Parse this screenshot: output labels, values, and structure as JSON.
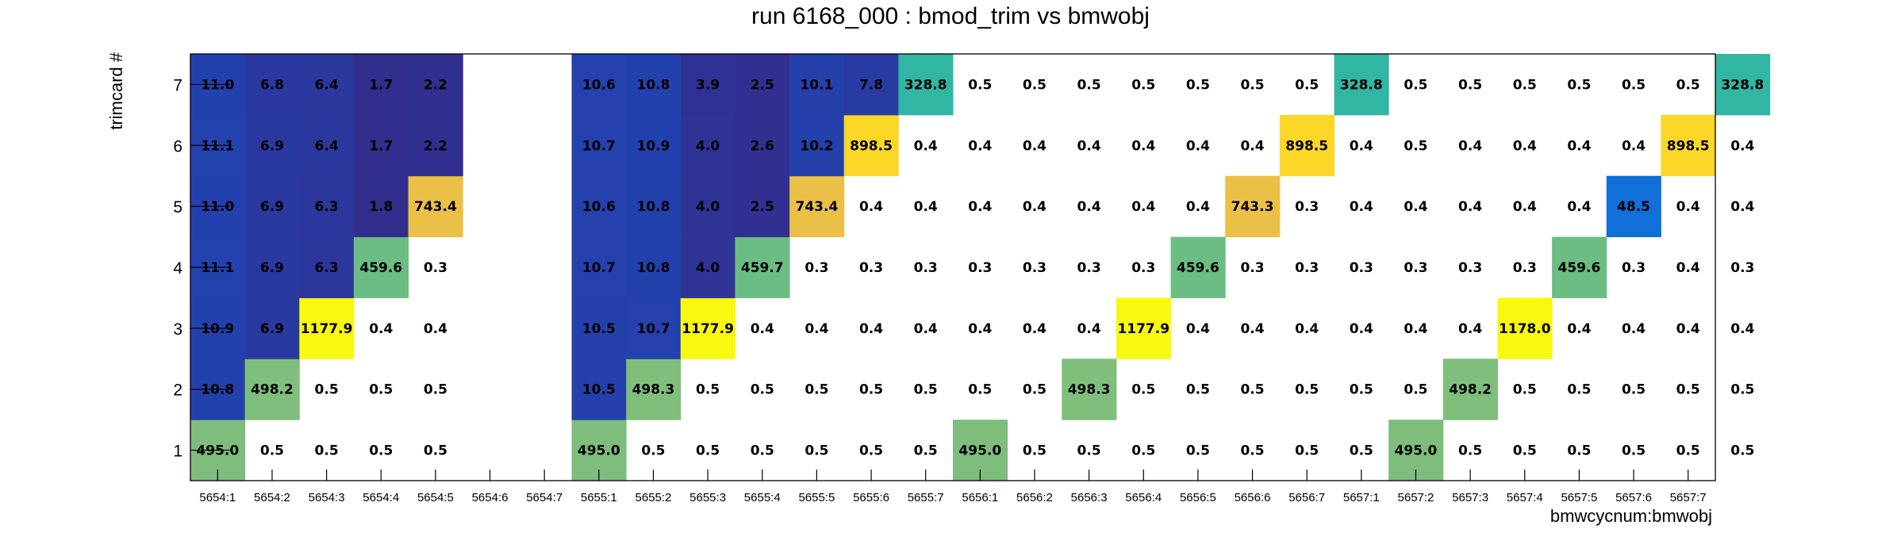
{
  "chart_data": {
    "type": "heatmap",
    "title": "run 6168_000 : bmod_trim vs bmwobj",
    "xlabel": "bmwcycnum:bmwobj",
    "ylabel": "trimcard #",
    "x_categories": [
      "5654:1",
      "5654:2",
      "5654:3",
      "5654:4",
      "5654:5",
      "5654:6",
      "5654:7",
      "5655:1",
      "5655:2",
      "5655:3",
      "5655:4",
      "5655:5",
      "5655:6",
      "5655:7",
      "5656:1",
      "5656:2",
      "5656:3",
      "5656:4",
      "5656:5",
      "5656:6",
      "5656:7",
      "5657:1",
      "5657:2",
      "5657:3",
      "5657:4",
      "5657:5",
      "5657:6",
      "5657:7"
    ],
    "y_categories": [
      "1",
      "2",
      "3",
      "4",
      "5",
      "6",
      "7"
    ],
    "grid": false,
    "legend": "none",
    "colormap": "parula",
    "color_range": [
      0,
      1200
    ],
    "values": [
      [
        495.0,
        10.8,
        10.9,
        11.1,
        11.0,
        11.1,
        11.0
      ],
      [
        0.5,
        498.2,
        6.9,
        6.9,
        6.9,
        6.9,
        6.8
      ],
      [
        0.5,
        0.5,
        1177.9,
        6.3,
        6.3,
        6.4,
        6.4
      ],
      [
        0.5,
        0.5,
        0.4,
        459.6,
        1.8,
        1.7,
        1.7
      ],
      [
        0.5,
        0.5,
        0.4,
        0.3,
        743.4,
        2.2,
        2.2
      ],
      [
        null,
        null,
        null,
        null,
        null,
        null,
        null
      ],
      [
        null,
        null,
        null,
        null,
        null,
        null,
        null
      ],
      [
        495.0,
        10.5,
        10.5,
        10.7,
        10.6,
        10.7,
        10.6
      ],
      [
        0.5,
        498.3,
        10.7,
        10.8,
        10.8,
        10.9,
        10.8
      ],
      [
        0.5,
        0.5,
        1177.9,
        4.0,
        4.0,
        4.0,
        3.9
      ],
      [
        0.5,
        0.5,
        0.4,
        459.7,
        2.5,
        2.6,
        2.5
      ],
      [
        0.5,
        0.5,
        0.4,
        0.3,
        743.4,
        10.2,
        10.1
      ],
      [
        0.5,
        0.5,
        0.4,
        0.3,
        0.4,
        898.5,
        7.8
      ],
      [
        0.5,
        0.5,
        0.4,
        0.3,
        0.4,
        0.4,
        328.8
      ],
      [
        495.0,
        0.5,
        0.4,
        0.3,
        0.4,
        0.4,
        0.5
      ],
      [
        0.5,
        0.5,
        0.4,
        0.3,
        0.4,
        0.4,
        0.5
      ],
      [
        0.5,
        498.3,
        0.4,
        0.3,
        0.4,
        0.4,
        0.5
      ],
      [
        0.5,
        0.5,
        1177.9,
        0.3,
        0.4,
        0.4,
        0.5
      ],
      [
        0.5,
        0.5,
        0.4,
        459.6,
        0.4,
        0.4,
        0.5
      ],
      [
        0.5,
        0.5,
        0.4,
        0.3,
        743.3,
        0.4,
        0.5
      ],
      [
        0.5,
        0.5,
        0.4,
        0.3,
        0.3,
        898.5,
        0.5
      ],
      [
        0.5,
        0.5,
        0.4,
        0.3,
        0.4,
        0.4,
        328.8
      ],
      [
        495.0,
        0.5,
        0.4,
        0.3,
        0.4,
        0.5,
        0.5
      ],
      [
        0.5,
        498.2,
        0.4,
        0.3,
        0.4,
        0.4,
        0.5
      ],
      [
        0.5,
        0.5,
        1178.0,
        0.3,
        0.4,
        0.4,
        0.5
      ],
      [
        0.5,
        0.5,
        0.4,
        459.6,
        0.4,
        0.4,
        0.5
      ],
      [
        0.5,
        0.5,
        0.4,
        0.3,
        48.5,
        0.4,
        0.5
      ],
      [
        0.5,
        0.5,
        0.4,
        0.4,
        0.4,
        898.5,
        0.5
      ],
      [
        0.5,
        0.5,
        0.4,
        0.3,
        0.4,
        0.4,
        328.8
      ]
    ]
  }
}
